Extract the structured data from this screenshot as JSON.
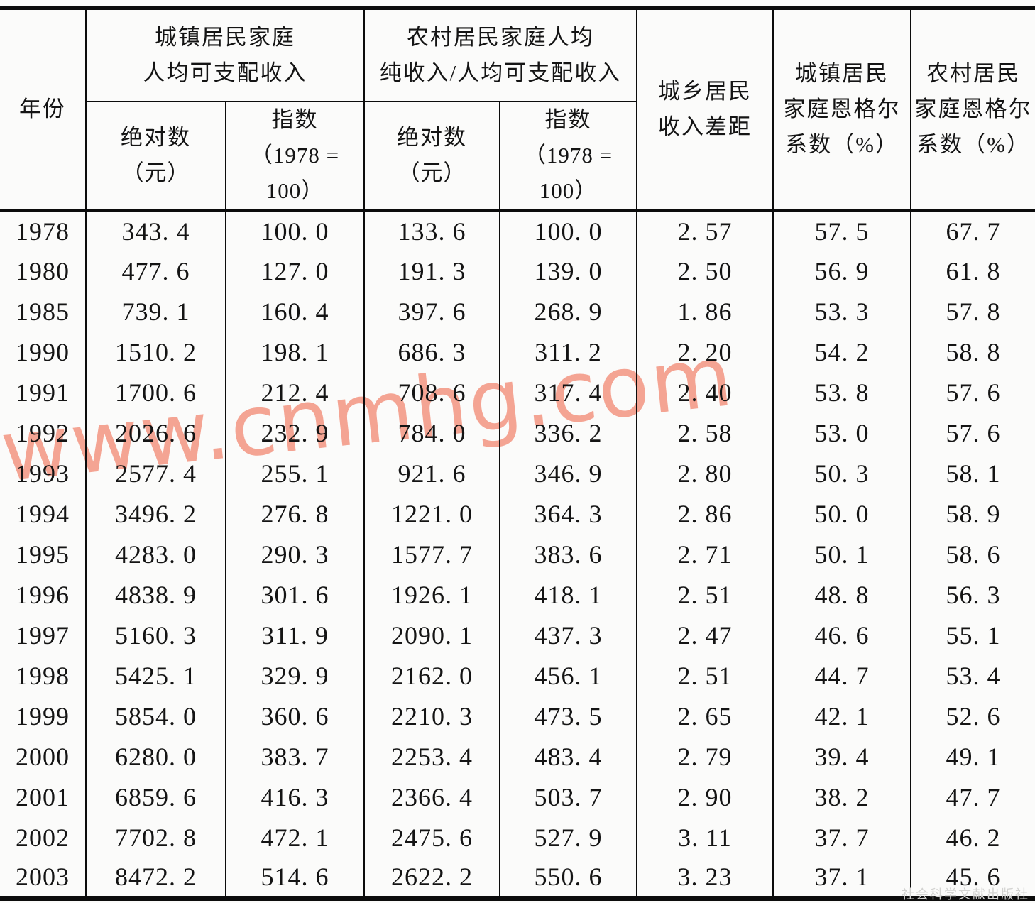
{
  "watermark": {
    "text": "www.cnmhg.com",
    "color": "#f4a493"
  },
  "publisher_mark": "社会科学文献出版社",
  "table": {
    "header": {
      "year": "年份",
      "urban_group": {
        "line1": "城镇居民家庭",
        "line2": "人均可支配收入"
      },
      "rural_group": {
        "line1": "农村居民家庭人均",
        "line2": "纯收入/人均可支配收入"
      },
      "absolute_sub": {
        "line1": "绝对数",
        "line2": "（元）"
      },
      "index_sub": {
        "line1": "指数",
        "line2": "（1978 = 100）"
      },
      "gap": {
        "line1": "城乡居民",
        "line2": "收入差距"
      },
      "urban_engel": {
        "line1": "城镇居民",
        "line2": "家庭恩格尔",
        "line3": "系数（%）"
      },
      "rural_engel": {
        "line1": "农村居民",
        "line2": "家庭恩格尔",
        "line3": "系数（%）"
      }
    },
    "column_keys": [
      "year",
      "urban-absolute",
      "urban-index",
      "rural-absolute",
      "rural-index",
      "income-gap",
      "urban-engel",
      "rural-engel"
    ],
    "rows": [
      [
        "1978",
        "343. 4",
        "100. 0",
        "133. 6",
        "100. 0",
        "2. 57",
        "57. 5",
        "67. 7"
      ],
      [
        "1980",
        "477. 6",
        "127. 0",
        "191. 3",
        "139. 0",
        "2. 50",
        "56. 9",
        "61. 8"
      ],
      [
        "1985",
        "739. 1",
        "160. 4",
        "397. 6",
        "268. 9",
        "1. 86",
        "53. 3",
        "57. 8"
      ],
      [
        "1990",
        "1510. 2",
        "198. 1",
        "686. 3",
        "311. 2",
        "2. 20",
        "54. 2",
        "58. 8"
      ],
      [
        "1991",
        "1700. 6",
        "212. 4",
        "708. 6",
        "317. 4",
        "2. 40",
        "53. 8",
        "57. 6"
      ],
      [
        "1992",
        "2026. 6",
        "232. 9",
        "784. 0",
        "336. 2",
        "2. 58",
        "53. 0",
        "57. 6"
      ],
      [
        "1993",
        "2577. 4",
        "255. 1",
        "921. 6",
        "346. 9",
        "2. 80",
        "50. 3",
        "58. 1"
      ],
      [
        "1994",
        "3496. 2",
        "276. 8",
        "1221. 0",
        "364. 3",
        "2. 86",
        "50. 0",
        "58. 9"
      ],
      [
        "1995",
        "4283. 0",
        "290. 3",
        "1577. 7",
        "383. 6",
        "2. 71",
        "50. 1",
        "58. 6"
      ],
      [
        "1996",
        "4838. 9",
        "301. 6",
        "1926. 1",
        "418. 1",
        "2. 51",
        "48. 8",
        "56. 3"
      ],
      [
        "1997",
        "5160. 3",
        "311. 9",
        "2090. 1",
        "437. 3",
        "2. 47",
        "46. 6",
        "55. 1"
      ],
      [
        "1998",
        "5425. 1",
        "329. 9",
        "2162. 0",
        "456. 1",
        "2. 51",
        "44. 7",
        "53. 4"
      ],
      [
        "1999",
        "5854. 0",
        "360. 6",
        "2210. 3",
        "473. 5",
        "2. 65",
        "42. 1",
        "52. 6"
      ],
      [
        "2000",
        "6280. 0",
        "383. 7",
        "2253. 4",
        "483. 4",
        "2. 79",
        "39. 4",
        "49. 1"
      ],
      [
        "2001",
        "6859. 6",
        "416. 3",
        "2366. 4",
        "503. 7",
        "2. 90",
        "38. 2",
        "47. 7"
      ],
      [
        "2002",
        "7702. 8",
        "472. 1",
        "2475. 6",
        "527. 9",
        "3. 11",
        "37. 7",
        "46. 2"
      ],
      [
        "2003",
        "8472. 2",
        "514. 6",
        "2622. 2",
        "550. 6",
        "3. 23",
        "37. 1",
        "45. 6"
      ]
    ]
  }
}
